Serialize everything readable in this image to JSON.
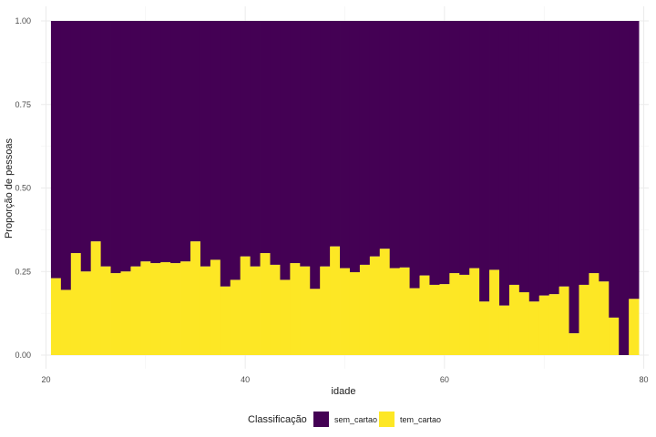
{
  "chart_data": {
    "type": "bar",
    "stacked": "fill",
    "xlabel": "idade",
    "ylabel": "Proporção de pessoas",
    "xlim": [
      19.5,
      80.5
    ],
    "ylim": [
      0,
      1
    ],
    "x_ticks": [
      20,
      40,
      60,
      80
    ],
    "y_ticks": [
      0,
      0.25,
      0.5,
      0.75,
      1
    ],
    "x_tick_labels": [
      "20",
      "40",
      "60",
      "80"
    ],
    "y_tick_labels": [
      "0.00",
      "0.25",
      "0.50",
      "0.75",
      "1.00"
    ],
    "grid": true,
    "legend": {
      "title": "Classificação",
      "placement": "bottom",
      "entries": [
        {
          "name": "sem_cartao",
          "color": "#440154"
        },
        {
          "name": "tem_cartao",
          "color": "#FDE725"
        }
      ]
    },
    "x": [
      21,
      22,
      23,
      24,
      25,
      26,
      27,
      28,
      29,
      30,
      31,
      32,
      33,
      34,
      35,
      36,
      37,
      38,
      39,
      40,
      41,
      42,
      43,
      44,
      45,
      46,
      47,
      48,
      49,
      50,
      51,
      52,
      53,
      54,
      55,
      56,
      57,
      58,
      59,
      60,
      61,
      62,
      63,
      64,
      65,
      66,
      67,
      68,
      69,
      70,
      71,
      72,
      73,
      74,
      75,
      76,
      77,
      78,
      79
    ],
    "series": [
      {
        "name": "tem_cartao",
        "color": "#FDE725",
        "values": [
          0.23,
          0.195,
          0.305,
          0.25,
          0.34,
          0.265,
          0.245,
          0.25,
          0.265,
          0.28,
          0.275,
          0.278,
          0.275,
          0.28,
          0.34,
          0.265,
          0.285,
          0.205,
          0.225,
          0.295,
          0.265,
          0.305,
          0.27,
          0.225,
          0.275,
          0.265,
          0.198,
          0.265,
          0.325,
          0.26,
          0.248,
          0.27,
          0.295,
          0.318,
          0.26,
          0.262,
          0.2,
          0.238,
          0.21,
          0.212,
          0.245,
          0.24,
          0.26,
          0.16,
          0.255,
          0.148,
          0.21,
          0.188,
          0.16,
          0.178,
          0.182,
          0.205,
          0.065,
          0.21,
          0.245,
          0.22,
          0.112,
          0.0,
          0.168
        ]
      },
      {
        "name": "sem_cartao",
        "color": "#440154"
      }
    ]
  }
}
